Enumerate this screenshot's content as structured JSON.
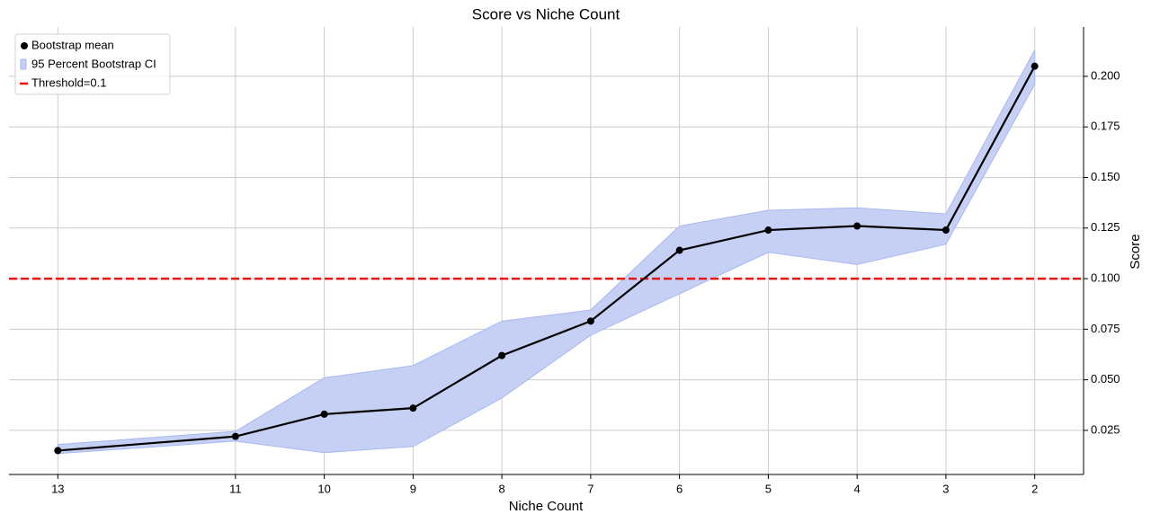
{
  "chart_data": {
    "type": "line",
    "title": "Score vs Niche Count",
    "x_label": "Niche Count",
    "y_label": "Score",
    "x": [
      13,
      11,
      10,
      9,
      8,
      7,
      6,
      5,
      4,
      3,
      2
    ],
    "xlim": [
      13.55,
      1.45
    ],
    "xticks": [
      13,
      11,
      10,
      9,
      8,
      7,
      6,
      5,
      4,
      3,
      2
    ],
    "ylim": [
      0.0032,
      0.2244
    ],
    "yticks": [
      0.025,
      {
        "value": 0.05,
        "label": "0.050"
      },
      0.075,
      {
        "value": 0.1,
        "label": "0.100"
      },
      0.125,
      {
        "value": 0.15,
        "label": "0.150"
      },
      0.175,
      {
        "value": 0.2,
        "label": "0.200"
      }
    ],
    "grid": true,
    "legend": "upper left",
    "series": [
      {
        "name": "Bootstrap mean",
        "color": "#000000",
        "values": [
          0.015,
          0.022,
          0.033,
          0.036,
          0.062,
          0.079,
          0.114,
          0.124,
          0.126,
          0.124,
          0.205
        ]
      }
    ],
    "band": {
      "name": "95 Percent Bootstrap CI",
      "color": "#c5d0f4",
      "edge": "#a9b9ee",
      "lower": [
        0.0135,
        0.0197,
        0.014,
        0.017,
        0.041,
        0.072,
        0.0925,
        0.113,
        0.107,
        0.117,
        0.196
      ],
      "upper": [
        0.018,
        0.0245,
        0.051,
        0.057,
        0.079,
        0.0845,
        0.126,
        0.1338,
        0.135,
        0.132,
        0.213
      ]
    },
    "threshold": {
      "name": "Threshold=0.1",
      "value": 0.1,
      "color": "#ee1111"
    }
  }
}
